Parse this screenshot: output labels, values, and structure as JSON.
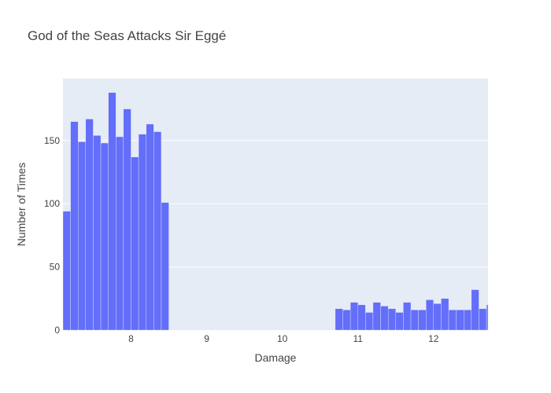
{
  "chart_data": {
    "type": "bar",
    "title": "God of the Seas Attacks Sir Eggé",
    "xlabel": "Damage",
    "ylabel": "Number of Times",
    "xlim": [
      7.1,
      12.72
    ],
    "ylim": [
      0,
      199
    ],
    "x_ticks": [
      8,
      9,
      10,
      11,
      12
    ],
    "y_ticks": [
      0,
      50,
      100,
      150
    ],
    "grid": true,
    "bin_width": 0.1,
    "bins": [
      {
        "x0": 7.1,
        "x1": 7.2,
        "value": 94
      },
      {
        "x0": 7.2,
        "x1": 7.3,
        "value": 165
      },
      {
        "x0": 7.3,
        "x1": 7.4,
        "value": 149
      },
      {
        "x0": 7.4,
        "x1": 7.5,
        "value": 167
      },
      {
        "x0": 7.5,
        "x1": 7.6,
        "value": 154
      },
      {
        "x0": 7.6,
        "x1": 7.7,
        "value": 148
      },
      {
        "x0": 7.7,
        "x1": 7.8,
        "value": 188
      },
      {
        "x0": 7.8,
        "x1": 7.9,
        "value": 153
      },
      {
        "x0": 7.9,
        "x1": 8.0,
        "value": 175
      },
      {
        "x0": 8.0,
        "x1": 8.1,
        "value": 137
      },
      {
        "x0": 8.1,
        "x1": 8.2,
        "value": 155
      },
      {
        "x0": 8.2,
        "x1": 8.3,
        "value": 163
      },
      {
        "x0": 8.3,
        "x1": 8.4,
        "value": 157
      },
      {
        "x0": 8.4,
        "x1": 8.5,
        "value": 101
      },
      {
        "x0": 10.7,
        "x1": 10.8,
        "value": 17
      },
      {
        "x0": 10.8,
        "x1": 10.9,
        "value": 16
      },
      {
        "x0": 10.9,
        "x1": 11.0,
        "value": 22
      },
      {
        "x0": 11.0,
        "x1": 11.1,
        "value": 20
      },
      {
        "x0": 11.1,
        "x1": 11.2,
        "value": 14
      },
      {
        "x0": 11.2,
        "x1": 11.3,
        "value": 22
      },
      {
        "x0": 11.3,
        "x1": 11.4,
        "value": 19
      },
      {
        "x0": 11.4,
        "x1": 11.5,
        "value": 17
      },
      {
        "x0": 11.5,
        "x1": 11.6,
        "value": 14
      },
      {
        "x0": 11.6,
        "x1": 11.7,
        "value": 22
      },
      {
        "x0": 11.7,
        "x1": 11.8,
        "value": 16
      },
      {
        "x0": 11.8,
        "x1": 11.9,
        "value": 16
      },
      {
        "x0": 11.9,
        "x1": 12.0,
        "value": 24
      },
      {
        "x0": 12.0,
        "x1": 12.1,
        "value": 21
      },
      {
        "x0": 12.1,
        "x1": 12.2,
        "value": 25
      },
      {
        "x0": 12.2,
        "x1": 12.3,
        "value": 16
      },
      {
        "x0": 12.3,
        "x1": 12.4,
        "value": 16
      },
      {
        "x0": 12.4,
        "x1": 12.5,
        "value": 16
      },
      {
        "x0": 12.5,
        "x1": 12.6,
        "value": 32
      },
      {
        "x0": 12.6,
        "x1": 12.7,
        "value": 17
      },
      {
        "x0": 12.7,
        "x1": 12.8,
        "value": 20
      }
    ],
    "colors": {
      "bar": "#636efa",
      "plot_background": "#e5ecf6",
      "grid": "#ffffff",
      "text": "#444444"
    }
  }
}
